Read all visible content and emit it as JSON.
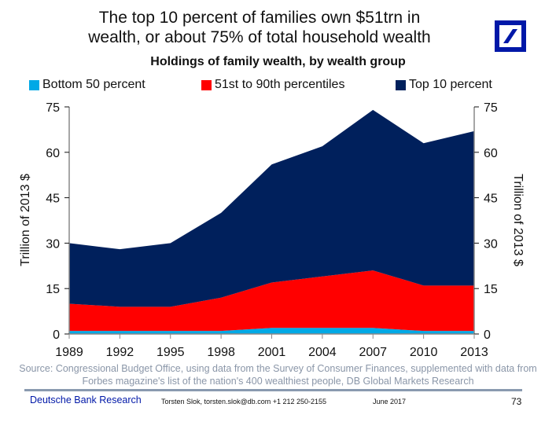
{
  "header": {
    "title_line1": "The top 10 percent of families own $51trn in",
    "title_line2": "wealth, or about 75% of total household wealth",
    "logo": "deutsche-bank-logo"
  },
  "footer": {
    "source_line1": "Source: Congressional Budget Office, using data from the Survey of Consumer Finances, supplemented with data from",
    "source_line2": "Forbes magazine's list of the nation's 400 wealthiest people, DB Global Markets Research",
    "brand": "Deutsche Bank Research",
    "author": "Torsten Slok, torsten.slok@db.com  +1 212 250-2155",
    "date": "June 2017",
    "page": "73"
  },
  "chart_data": {
    "type": "area",
    "stacked": true,
    "title": "Holdings of family wealth, by wealth group",
    "xlabel": "",
    "ylabel": "Trillion of 2013 $",
    "ylabel_right": "Trillion of 2013 $",
    "ylim": [
      0,
      75
    ],
    "yticks": [
      0,
      15,
      30,
      45,
      60,
      75
    ],
    "x": [
      "1989",
      "1992",
      "1995",
      "1998",
      "2001",
      "2004",
      "2007",
      "2010",
      "2013"
    ],
    "legend_position": "top",
    "grid": false,
    "series": [
      {
        "name": "Bottom 50 percent",
        "color": "#00a9e6",
        "values": [
          1,
          1,
          1,
          1,
          2,
          2,
          2,
          1,
          1
        ]
      },
      {
        "name": "51st to 90th percentiles",
        "color": "#ff0000",
        "values": [
          9,
          8,
          8,
          11,
          15,
          17,
          19,
          15,
          15
        ]
      },
      {
        "name": "Top 10 percent",
        "color": "#00205c",
        "values": [
          20,
          19,
          21,
          28,
          39,
          43,
          53,
          47,
          51
        ]
      }
    ]
  }
}
